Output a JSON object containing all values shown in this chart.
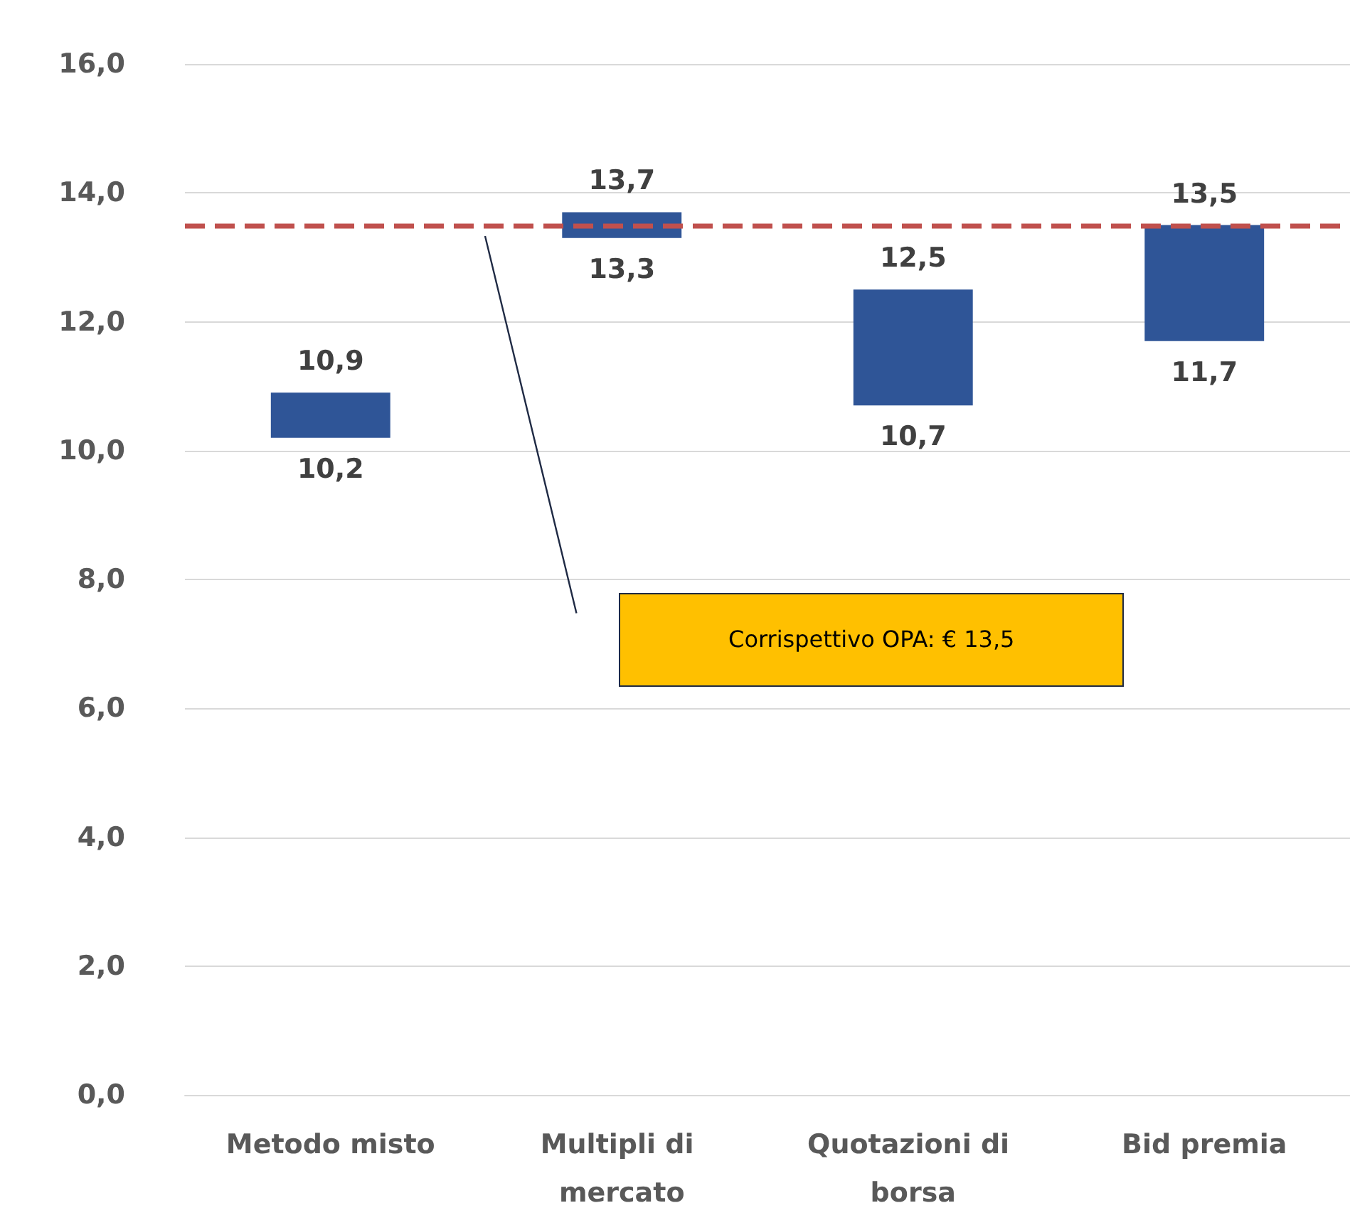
{
  "chart_data": {
    "type": "bar",
    "categories": [
      "Metodo misto",
      "Multipli di mercato",
      "Quotazioni di borsa",
      "Bid premia"
    ],
    "values": [
      0.7,
      0.4,
      1.8,
      1.8
    ],
    "base": [
      10.2,
      13.3,
      10.7,
      11.7
    ],
    "color": "#2f5597",
    "ylim": [
      0,
      16
    ],
    "yticks": [
      {
        "value": 0,
        "label": "0,0"
      },
      {
        "value": 2,
        "label": "2,0"
      },
      {
        "value": 4,
        "label": "4,0"
      },
      {
        "value": 6,
        "label": "6,0"
      },
      {
        "value": 8,
        "label": "8,0"
      },
      {
        "value": 10,
        "label": "10,0"
      },
      {
        "value": 12,
        "label": "12,0"
      },
      {
        "value": 14,
        "label": "14,0"
      },
      {
        "value": 16,
        "label": "16,0"
      }
    ],
    "grid": "y",
    "ref_lines": [
      {
        "axis": "y",
        "value": 13.5,
        "color": "#c0504d",
        "line_style": "dashed"
      }
    ],
    "annotations": [
      "Corrispettivo OPA: € 13,5",
      {
        "text": "10,9",
        "x": "Metodo misto",
        "y": 10.9
      },
      {
        "text": "10,2",
        "x": "Metodo misto",
        "y": 10.2
      },
      {
        "text": "13,7",
        "x": "Multipli di mercato",
        "y": 13.7
      },
      {
        "text": "13,3",
        "x": "Multipli di mercato",
        "y": 13.3
      },
      {
        "text": "12,5",
        "x": "Quotazioni di borsa",
        "y": 12.5
      },
      {
        "text": "10,7",
        "x": "Quotazioni di borsa",
        "y": 10.7
      },
      {
        "text": "13,5",
        "x": "Bid premia",
        "y": 13.5
      },
      {
        "text": "11,7",
        "x": "Bid premia",
        "y": 11.7
      }
    ]
  }
}
